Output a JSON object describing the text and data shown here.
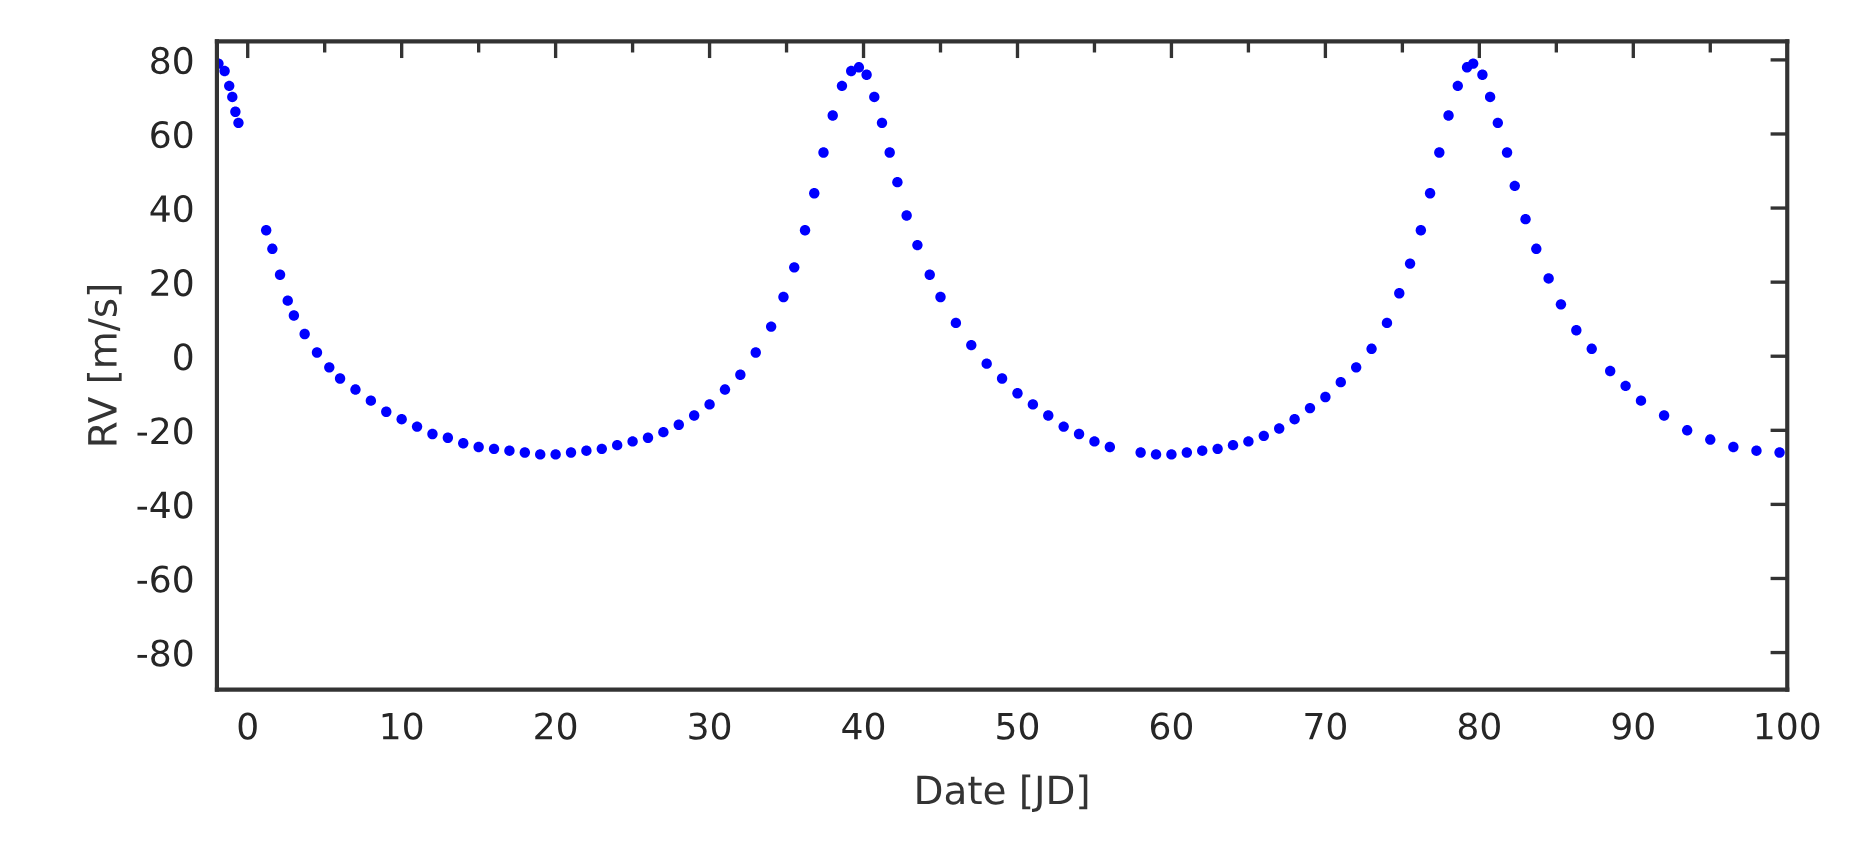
{
  "chart_data": {
    "type": "scatter",
    "xlabel": "Date [JD]",
    "ylabel": "RV [m/s]",
    "marker": "circle",
    "grid": false,
    "legend": false,
    "xlim": [
      -2,
      100
    ],
    "ylim": [
      -90,
      85
    ],
    "xticks": [
      0,
      {
        "value": 5,
        "label": null
      },
      10,
      {
        "value": 15,
        "label": null
      },
      20,
      {
        "value": 25,
        "label": null
      },
      30,
      {
        "value": 35,
        "label": null
      },
      40,
      {
        "value": 45,
        "label": null
      },
      50,
      {
        "value": 55,
        "label": null
      },
      60,
      {
        "value": 65,
        "label": null
      },
      70,
      {
        "value": 75,
        "label": null
      },
      80,
      {
        "value": 85,
        "label": null
      },
      90,
      {
        "value": 95,
        "label": null
      },
      100
    ],
    "yticks": [
      -80,
      -60,
      -40,
      -20,
      0,
      20,
      40,
      60,
      80
    ],
    "series": [
      {
        "color": "#0000ff",
        "x": [
          -1.9,
          -1.5,
          -1.2,
          -1,
          -0.8,
          -0.6,
          1.2,
          1.6,
          2.1,
          2.6,
          3,
          3.7,
          4.5,
          5.3,
          6,
          7,
          8,
          9,
          10,
          11,
          12,
          13,
          14,
          15,
          16,
          17,
          18,
          19,
          20,
          21,
          22,
          23,
          24,
          25,
          26,
          27,
          28,
          29,
          30,
          31,
          32,
          33,
          34,
          34.8,
          35.5,
          36.2,
          36.8,
          37.4,
          38,
          38.6,
          39.2,
          39.7,
          40.2,
          40.7,
          41.2,
          41.7,
          42.2,
          42.8,
          43.5,
          44.3,
          45,
          46,
          47,
          48,
          49,
          50,
          51,
          52,
          53,
          54,
          55,
          56,
          58,
          59,
          60,
          61,
          62,
          63,
          64,
          65,
          66,
          67,
          68,
          69,
          70,
          71,
          72,
          73,
          74,
          74.8,
          75.5,
          76.2,
          76.8,
          77.4,
          78,
          78.6,
          79.2,
          79.6,
          80.2,
          80.7,
          81.2,
          81.8,
          82.3,
          83,
          83.7,
          84.5,
          85.3,
          86.3,
          87.3,
          88.5,
          89.5,
          90.5,
          92,
          93.5,
          95,
          96.5,
          98,
          99.5
        ],
        "values": [
          79,
          77,
          73,
          70,
          66,
          63,
          34,
          29,
          22,
          15,
          11,
          6,
          1,
          -3,
          -6,
          -9,
          -12,
          -15,
          -17,
          -19,
          -21,
          -22,
          -23.5,
          -24.5,
          -25,
          -25.5,
          -26,
          -26.5,
          -26.5,
          -26,
          -25.5,
          -25,
          -24,
          -23,
          -22,
          -20.5,
          -18.5,
          -16,
          -13,
          -9,
          -5,
          1,
          8,
          16,
          24,
          34,
          44,
          55,
          65,
          73,
          77,
          78,
          76,
          70,
          63,
          55,
          47,
          38,
          30,
          22,
          16,
          9,
          3,
          -2,
          -6,
          -10,
          -13,
          -16,
          -19,
          -21,
          -23,
          -24.5,
          -26,
          -26.5,
          -26.5,
          -26,
          -25.5,
          -25,
          -24,
          -23,
          -21.5,
          -19.5,
          -17,
          -14,
          -11,
          -7,
          -3,
          2,
          9,
          17,
          25,
          34,
          44,
          55,
          65,
          73,
          78,
          79,
          76,
          70,
          63,
          55,
          46,
          37,
          29,
          21,
          14,
          7,
          2,
          -4,
          -8,
          -12,
          -16,
          -20,
          -22.5,
          -24.5,
          -25.5,
          -26
        ]
      }
    ]
  }
}
